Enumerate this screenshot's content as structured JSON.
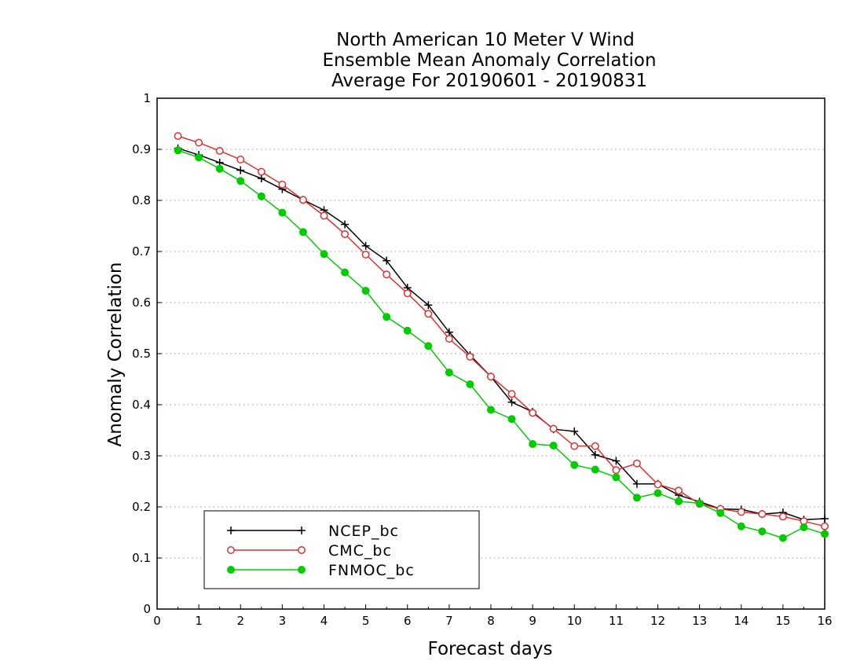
{
  "chart_data": {
    "type": "line",
    "title_lines": [
      "North American 10 Meter V Wind",
      "Ensemble Mean Anomaly Correlation",
      "Average For 20190601 - 20190831"
    ],
    "xlabel": "Forecast days",
    "ylabel": "Anomaly Correlation",
    "xlim": [
      0,
      16
    ],
    "ylim": [
      0,
      1
    ],
    "x_ticks": [
      0,
      1,
      2,
      3,
      4,
      5,
      6,
      7,
      8,
      9,
      10,
      11,
      12,
      13,
      14,
      15,
      16
    ],
    "y_ticks": [
      0,
      0.1,
      0.2,
      0.3,
      0.4,
      0.5,
      0.6,
      0.7,
      0.8,
      0.9,
      1
    ],
    "y_tick_labels": [
      "0",
      "0.1",
      "0.2",
      "0.3",
      "0.4",
      "0.5",
      "0.6",
      "0.7",
      "0.8",
      "0.9",
      "1"
    ],
    "grid": "horizontal dotted",
    "legend_position": "bottom-left",
    "x": [
      0.5,
      1,
      1.5,
      2,
      2.5,
      3,
      3.5,
      4,
      4.5,
      5,
      5.5,
      6,
      6.5,
      7,
      7.5,
      8,
      8.5,
      9,
      9.5,
      10,
      10.5,
      11,
      11.5,
      12,
      12.5,
      13,
      13.5,
      14,
      14.5,
      15,
      15.5,
      16
    ],
    "series": [
      {
        "name": "NCEP_bc",
        "color": "#000000",
        "marker": "plus",
        "values": [
          0.902,
          0.889,
          0.874,
          0.859,
          0.843,
          0.822,
          0.801,
          0.781,
          0.753,
          0.711,
          0.682,
          0.629,
          0.595,
          0.542,
          0.497,
          0.455,
          0.405,
          0.386,
          0.352,
          0.348,
          0.302,
          0.29,
          0.245,
          0.245,
          0.223,
          0.21,
          0.196,
          0.195,
          0.186,
          0.189,
          0.175,
          0.177
        ]
      },
      {
        "name": "CMC_bc",
        "color": "#e03030",
        "marker": "open-circle",
        "values": [
          0.926,
          0.913,
          0.897,
          0.88,
          0.856,
          0.831,
          0.801,
          0.77,
          0.734,
          0.694,
          0.655,
          0.618,
          0.578,
          0.529,
          0.494,
          0.455,
          0.421,
          0.384,
          0.353,
          0.319,
          0.319,
          0.272,
          0.285,
          0.244,
          0.232,
          0.206,
          0.196,
          0.19,
          0.186,
          0.181,
          0.172,
          0.162
        ]
      },
      {
        "name": "FNMOC_bc",
        "color": "#00cc00",
        "marker": "filled-circle",
        "values": [
          0.898,
          0.884,
          0.862,
          0.838,
          0.808,
          0.776,
          0.738,
          0.695,
          0.659,
          0.623,
          0.572,
          0.545,
          0.515,
          0.463,
          0.44,
          0.39,
          0.372,
          0.323,
          0.32,
          0.282,
          0.273,
          0.258,
          0.218,
          0.227,
          0.211,
          0.207,
          0.188,
          0.162,
          0.152,
          0.139,
          0.16,
          0.147
        ]
      }
    ]
  }
}
